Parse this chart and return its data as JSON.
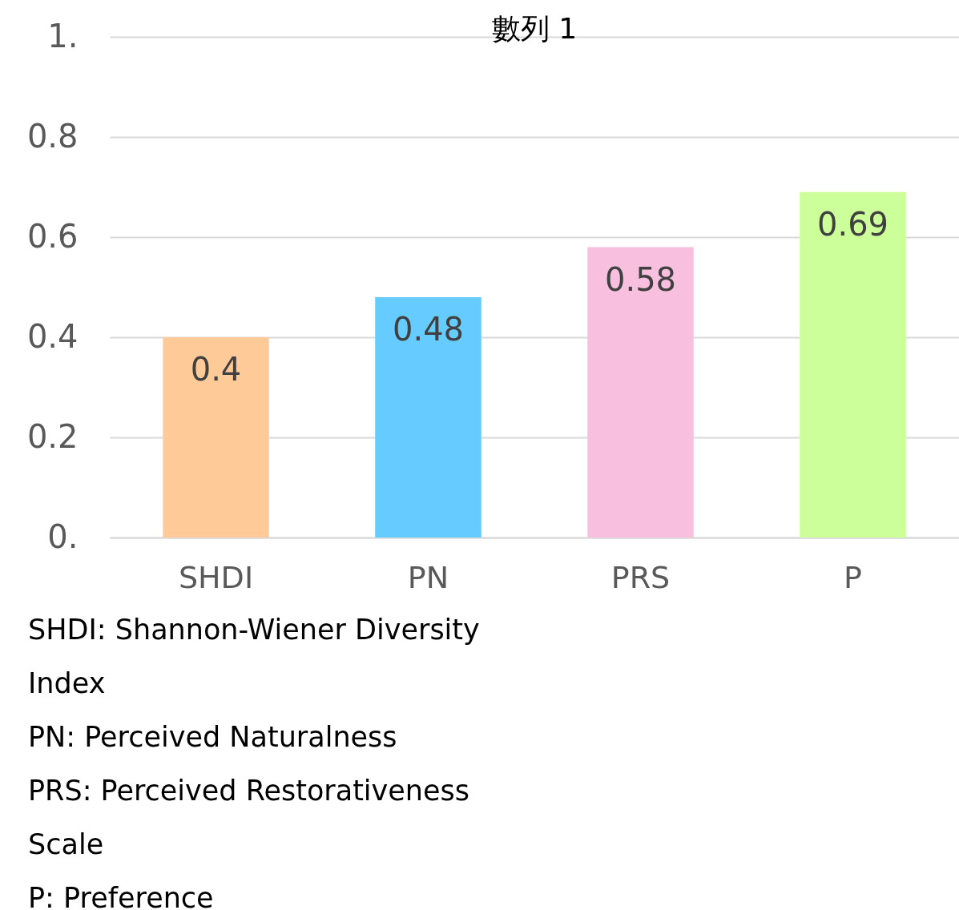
{
  "chart_data": {
    "type": "bar",
    "title": "數列 1",
    "categories": [
      "SHDI",
      "PN",
      "PRS",
      "P"
    ],
    "values": [
      0.4,
      0.48,
      0.58,
      0.69
    ],
    "colors": [
      "#fecb98",
      "#66ccff",
      "#f9bfdf",
      "#ccff99"
    ],
    "ylim": [
      0,
      1
    ],
    "yticks": [
      {
        "value": 0,
        "label": "0."
      },
      0.2,
      0.4,
      0.6,
      0.8,
      {
        "value": 1,
        "label": "1."
      }
    ],
    "grid": "y",
    "data_labels": true,
    "annotations": [
      "SHDI: Shannon-Wiener Diversity Index",
      "PN: Perceived Naturalness",
      "PRS: Perceived Restorativeness Scale",
      "P: Preference"
    ]
  }
}
